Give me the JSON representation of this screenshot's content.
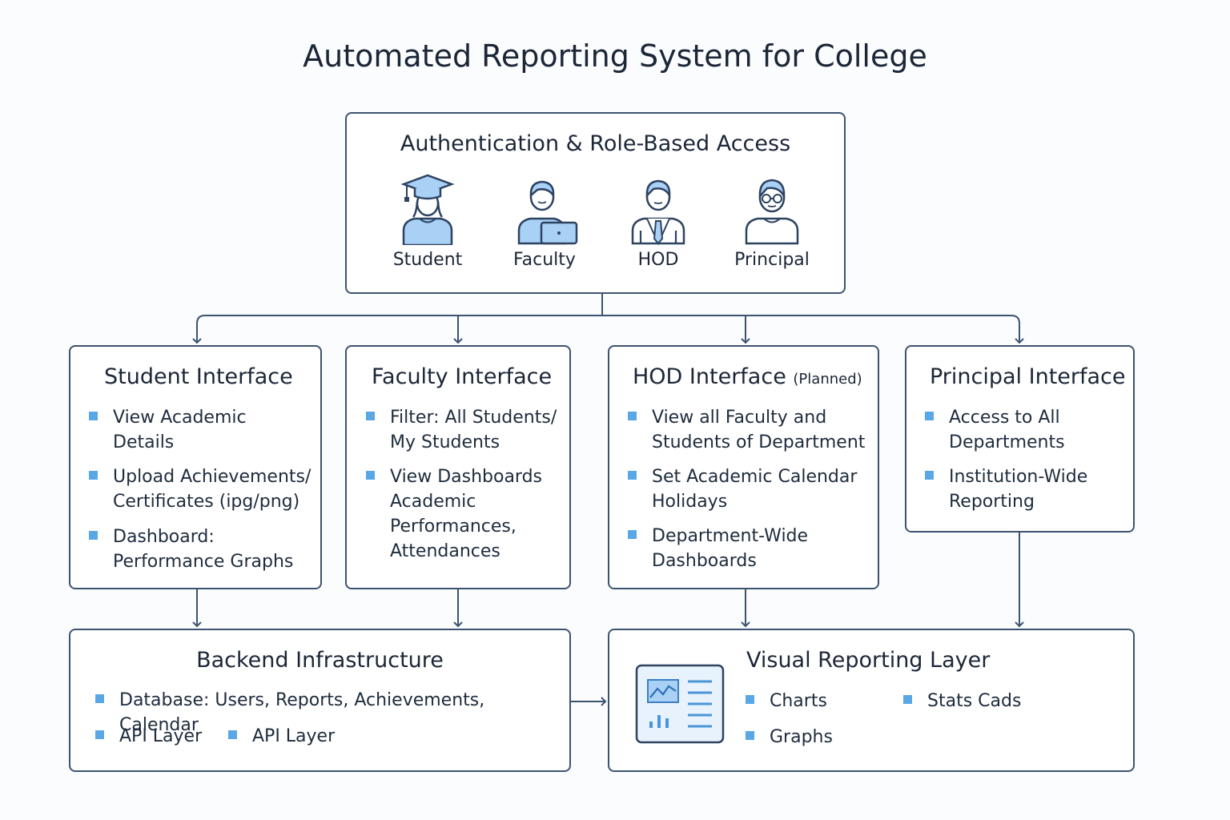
{
  "title": "Automated Reporting System for College",
  "auth": {
    "title": "Authentication & Role-Based Access",
    "roles": [
      {
        "label": "Student",
        "icon": "student-graduate-icon"
      },
      {
        "label": "Faculty",
        "icon": "faculty-laptop-icon"
      },
      {
        "label": "HOD",
        "icon": "hod-tie-icon"
      },
      {
        "label": "Principal",
        "icon": "principal-glasses-icon"
      }
    ]
  },
  "interfaces": {
    "student": {
      "title": "Student Interface",
      "items": [
        "View Academic\nDetails",
        "Upload Achievements/\nCertificates (ipg/png)",
        "Dashboard:\nPerformance Graphs"
      ]
    },
    "faculty": {
      "title": "Faculty Interface",
      "items": [
        "Filter: All Students/\nMy Students",
        "View Dashboards\nAcademic\nPerformances,\nAttendances"
      ]
    },
    "hod": {
      "title": "HOD Interface",
      "title_note": "(Planned)",
      "items": [
        "View all Faculty and\nStudents of Department",
        "Set Academic Calendar\nHolidays",
        "Department-Wide\nDashboards"
      ]
    },
    "principal": {
      "title": "Principal Interface",
      "items": [
        "Access to All\nDepartments",
        "Institution-Wide\nReporting"
      ]
    }
  },
  "backend": {
    "title": "Backend Infrastructure",
    "items": [
      "Database: Users, Reports, Achievements, Calendar",
      "API Layer",
      "API Layer"
    ]
  },
  "visual": {
    "title": "Visual Reporting Layer",
    "icon": "dashboard-chart-icon",
    "items": [
      "Charts",
      "Stats Cads",
      "Graphs"
    ]
  },
  "colors": {
    "border": "#3d5372",
    "bullet": "#5aa7e6",
    "icon_fill": "#a9d0f5",
    "text": "#1b2637"
  }
}
